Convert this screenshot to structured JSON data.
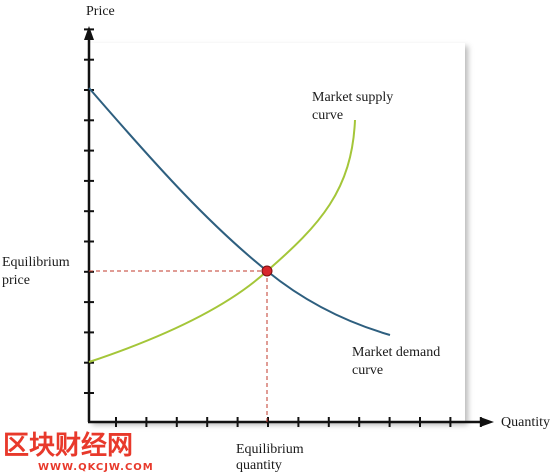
{
  "diagram": {
    "axes": {
      "y_label": "Price",
      "x_label": "Quantity"
    },
    "supply_curve": {
      "label_line1": "Market supply",
      "label_line2": "curve",
      "color": "#a4c639"
    },
    "demand_curve": {
      "label_line1": "Market demand",
      "label_line2": "curve",
      "color": "#2e5f7f"
    },
    "equilibrium": {
      "price_label_line1": "Equilibrium",
      "price_label_line2": "price",
      "quantity_label_line1": "Equilibrium",
      "quantity_label_line2": "quantity",
      "point_color": "#d8262b",
      "guide_color": "#c0392b"
    },
    "watermark": {
      "main": "区块财经网",
      "sub": "WWW.QKCJW.COM"
    }
  }
}
